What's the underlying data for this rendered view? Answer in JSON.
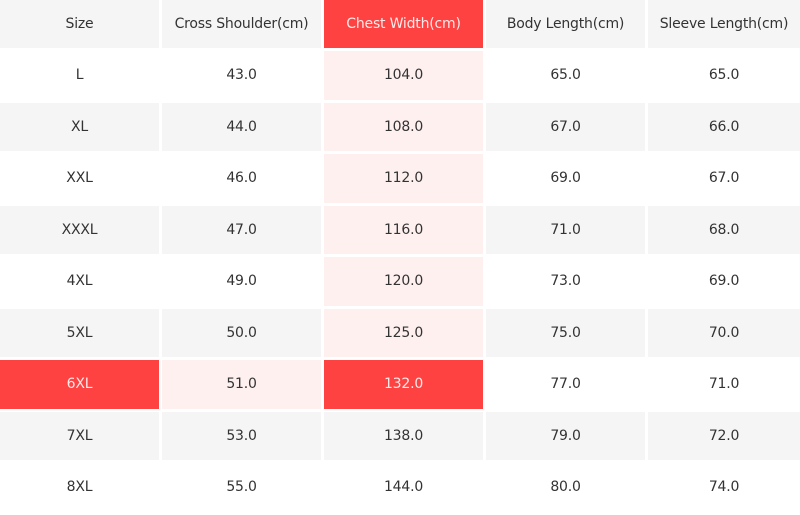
{
  "size_chart": {
    "headers": [
      "Size",
      "Cross Shoulder(cm)",
      "Chest Width(cm)",
      "Body Length(cm)",
      "Sleeve Length(cm)"
    ],
    "highlighted_column": 2,
    "highlighted_row_size": "6XL",
    "colors": {
      "highlight": "#fe4141",
      "tint": "#fff0f0",
      "row_alt": "#f5f5f5",
      "text": "#333333"
    },
    "rows": [
      [
        "L",
        "43.0",
        "104.0",
        "65.0",
        "65.0"
      ],
      [
        "XL",
        "44.0",
        "108.0",
        "67.0",
        "66.0"
      ],
      [
        "XXL",
        "46.0",
        "112.0",
        "69.0",
        "67.0"
      ],
      [
        "XXXL",
        "47.0",
        "116.0",
        "71.0",
        "68.0"
      ],
      [
        "4XL",
        "49.0",
        "120.0",
        "73.0",
        "69.0"
      ],
      [
        "5XL",
        "50.0",
        "125.0",
        "75.0",
        "70.0"
      ],
      [
        "6XL",
        "51.0",
        "132.0",
        "77.0",
        "71.0"
      ],
      [
        "7XL",
        "53.0",
        "138.0",
        "79.0",
        "72.0"
      ],
      [
        "8XL",
        "55.0",
        "144.0",
        "80.0",
        "74.0"
      ]
    ]
  }
}
